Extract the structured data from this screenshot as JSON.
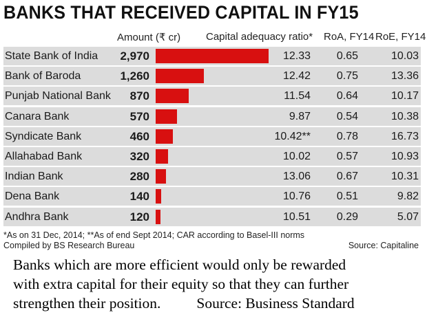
{
  "title": "BANKS THAT RECEIVED CAPITAL IN FY15",
  "headers": {
    "amount": "Amount (₹ cr)",
    "car": "Capital adequacy ratio*",
    "roa": "RoA, FY14",
    "roe": "RoE, FY14"
  },
  "chart_data": {
    "type": "bar",
    "orientation": "horizontal",
    "title": "BANKS THAT RECEIVED CAPITAL IN FY15",
    "categories": [
      "State Bank of India",
      "Bank of Baroda",
      "Punjab National Bank",
      "Canara Bank",
      "Syndicate Bank",
      "Allahabad Bank",
      "Indian Bank",
      "Dena Bank",
      "Andhra Bank"
    ],
    "series": [
      {
        "name": "Amount (₹ cr)",
        "values": [
          2970,
          1260,
          870,
          570,
          460,
          320,
          280,
          140,
          120
        ]
      }
    ],
    "xlim": [
      0,
      2970
    ],
    "bar_color": "#d81010",
    "row_shading": "#dcdcdc"
  },
  "rows": [
    {
      "bank": "State Bank of India",
      "amount": "2,970",
      "car": "12.33",
      "roa": "0.65",
      "roe": "10.03"
    },
    {
      "bank": "Bank of Baroda",
      "amount": "1,260",
      "car": "12.42",
      "roa": "0.75",
      "roe": "13.36"
    },
    {
      "bank": "Punjab National Bank",
      "amount": "870",
      "car": "11.54",
      "roa": "0.64",
      "roe": "10.17"
    },
    {
      "bank": "Canara Bank",
      "amount": "570",
      "car": "9.87",
      "roa": "0.54",
      "roe": "10.38"
    },
    {
      "bank": "Syndicate Bank",
      "amount": "460",
      "car": "10.42**",
      "roa": "0.78",
      "roe": "16.73"
    },
    {
      "bank": "Allahabad Bank",
      "amount": "320",
      "car": "10.02",
      "roa": "0.57",
      "roe": "10.93"
    },
    {
      "bank": "Indian Bank",
      "amount": "280",
      "car": "13.06",
      "roa": "0.67",
      "roe": "10.31"
    },
    {
      "bank": "Dena Bank",
      "amount": "140",
      "car": "10.76",
      "roa": "0.51",
      "roe": "9.82"
    },
    {
      "bank": "Andhra Bank",
      "amount": "120",
      "car": "10.51",
      "roa": "0.29",
      "roe": "5.07"
    }
  ],
  "footnote": "*As on 31 Dec, 2014; **As of end Sept 2014; CAR according to Basel-III norms",
  "compiled_by": "Compiled by BS Research Bureau",
  "source": "Source: Capitaline",
  "caption": {
    "line1": "Banks which are more efficient would only be rewarded",
    "line2": "with extra capital for their equity so that they can further",
    "line3": "strengthen their position.",
    "source": "Source: Business Standard"
  }
}
